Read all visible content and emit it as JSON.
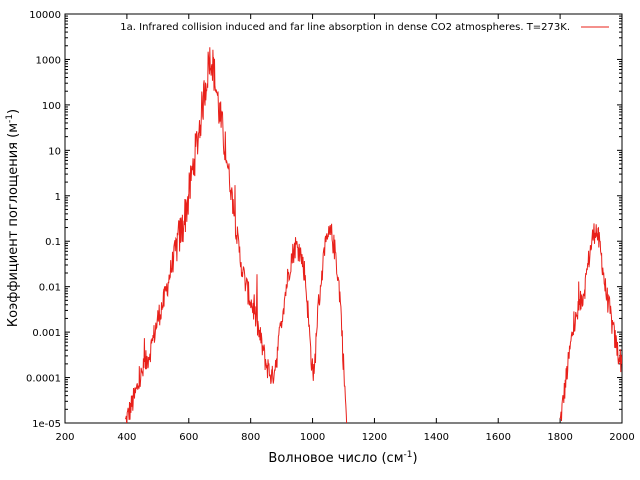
{
  "chart_data": {
    "type": "line",
    "xlabel": "Волновое число (см",
    "xlabel_sup": "-1",
    "xlabel_end": ")",
    "ylabel": "Коэффициент поглощения (м",
    "ylabel_sup": "-1",
    "ylabel_end": ")",
    "xlim": [
      200,
      2000
    ],
    "ylim": [
      1e-05,
      10000
    ],
    "yscale": "log",
    "grid": false,
    "legend_position": "top-right",
    "x_ticks": [
      200,
      400,
      600,
      800,
      1000,
      1200,
      1400,
      1600,
      1800,
      2000
    ],
    "x_tick_labels": [
      "200",
      "400",
      "600",
      "800",
      "1000",
      "1200",
      "1400",
      "1600",
      "1800",
      "2000"
    ],
    "y_ticks": [
      1e-05,
      0.0001,
      0.001,
      0.01,
      0.1,
      1,
      10,
      100,
      1000,
      10000
    ],
    "y_tick_labels": [
      "1e-05",
      "0.0001",
      "0.001",
      "0.01",
      "0.1",
      "1",
      "10",
      "100",
      "1000",
      "10000"
    ],
    "series": [
      {
        "name": "1a. Infrared collision induced and far line absorption in dense CO2 atmospheres. T=273K.",
        "color": "#e8201a",
        "x": [
          395,
          420,
          440,
          460,
          470,
          480,
          500,
          520,
          540,
          560,
          580,
          600,
          615,
          630,
          645,
          655,
          665,
          672,
          680,
          690,
          700,
          715,
          730,
          745,
          760,
          775,
          790,
          810,
          830,
          850,
          870,
          885,
          900,
          915,
          930,
          945,
          960,
          975,
          985,
          995,
          1005,
          1015,
          1030,
          1045,
          1060,
          1075,
          1090,
          1100,
          1110
        ],
        "y": [
          1e-05,
          3e-05,
          8e-05,
          0.0002,
          0.0003,
          0.0005,
          0.002,
          0.005,
          0.02,
          0.08,
          0.2,
          1,
          5,
          20,
          100,
          300,
          800,
          1200,
          600,
          200,
          60,
          15,
          3,
          0.5,
          0.08,
          0.02,
          0.008,
          0.003,
          0.0008,
          0.0002,
          0.0001,
          0.0003,
          0.002,
          0.01,
          0.04,
          0.08,
          0.06,
          0.02,
          0.003,
          0.0003,
          0.0001,
          0.002,
          0.02,
          0.1,
          0.15,
          0.05,
          0.005,
          0.0002,
          1e-05
        ]
      },
      {
        "name": "",
        "color": "#e8201a",
        "x": [
          1800,
          1820,
          1840,
          1860,
          1880,
          1895,
          1905,
          1915,
          1925,
          1935,
          1945,
          1960,
          1975,
          1990,
          2000
        ],
        "y": [
          1e-05,
          0.0001,
          0.001,
          0.003,
          0.01,
          0.05,
          0.12,
          0.2,
          0.1,
          0.04,
          0.01,
          0.003,
          0.0008,
          0.0003,
          0.0002
        ]
      }
    ]
  }
}
